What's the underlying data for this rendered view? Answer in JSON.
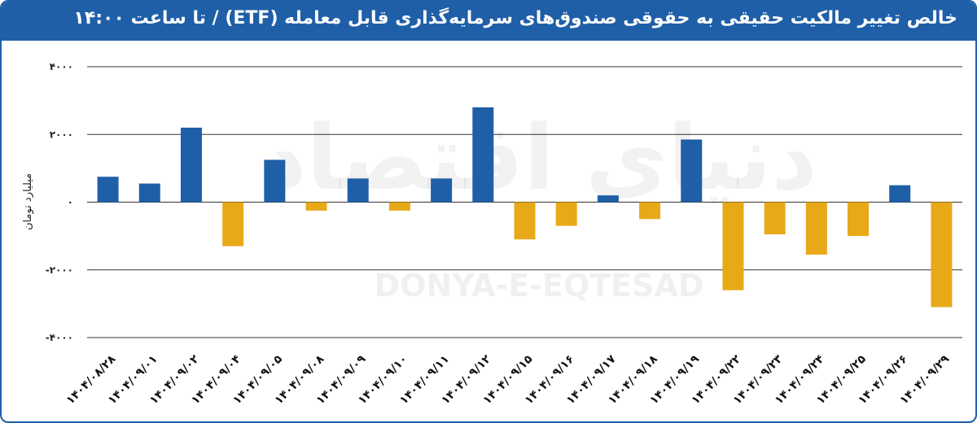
{
  "header": {
    "title": "خالص تغییر مالکیت حقیقی به حقوقی صندوق‌های سرمایه‌گذاری قابل معامله (ETF) / تا ساعت ۱۴:۰۰"
  },
  "watermark": {
    "latin": "DONYA-E-EQTESAD",
    "persian": "دنیای اقتصاد"
  },
  "colors": {
    "header": "#1f5fa8",
    "positive": "#1f5fa8",
    "negative": "#e8a919"
  },
  "chart_data": {
    "type": "bar",
    "title": "خالص تغییر مالکیت حقیقی به حقوقی صندوق‌های سرمایه‌گذاری قابل معامله (ETF) / تا ساعت ۱۴:۰۰",
    "ylabel": "میلیارد تومان",
    "xlabel": "",
    "ylim": [
      -4000,
      4000
    ],
    "yticks": [
      4000,
      2000,
      0,
      -2000,
      -4000
    ],
    "ytick_labels": [
      "۴۰۰۰",
      "۲۰۰۰",
      "۰",
      "-۲۰۰۰",
      "-۴۰۰۰"
    ],
    "grid": true,
    "categories": [
      "۱۴۰۴/۰۸/۲۸",
      "۱۴۰۴/۰۹/۰۱",
      "۱۴۰۴/۰۹/۰۲",
      "۱۴۰۴/۰۹/۰۴",
      "۱۴۰۴/۰۹/۰۵",
      "۱۴۰۴/۰۹/۰۸",
      "۱۴۰۴/۰۹/۰۹",
      "۱۴۰۴/۰۹/۱۰",
      "۱۴۰۴/۰۹/۱۱",
      "۱۴۰۴/۰۹/۱۲",
      "۱۴۰۴/۰۹/۱۵",
      "۱۴۰۴/۰۹/۱۶",
      "۱۴۰۴/۰۹/۱۷",
      "۱۴۰۴/۰۹/۱۸",
      "۱۴۰۴/۰۹/۱۹",
      "۱۴۰۴/۰۹/۲۲",
      "۱۴۰۴/۰۹/۲۳",
      "۱۴۰۴/۰۹/۲۴",
      "۱۴۰۴/۰۹/۲۵",
      "۱۴۰۴/۰۹/۲۶",
      "۱۴۰۴/۰۹/۲۹"
    ],
    "values": [
      750,
      550,
      2200,
      -1300,
      1250,
      -250,
      700,
      -250,
      700,
      2800,
      -1100,
      -700,
      200,
      -500,
      1850,
      -2600,
      -950,
      -1550,
      -1000,
      500,
      -3100
    ]
  }
}
